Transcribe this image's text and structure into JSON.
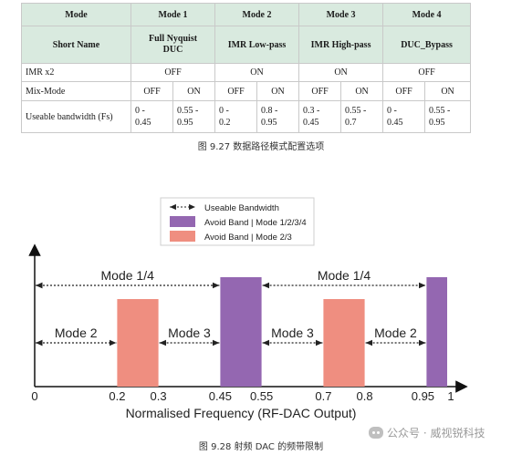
{
  "table": {
    "header_mode": "Mode",
    "modes": [
      "Mode 1",
      "Mode 2",
      "Mode 3",
      "Mode 4"
    ],
    "short_name_label": "Short Name",
    "short_names": [
      "Full Nyquist\nDUC",
      "IMR Low-pass",
      "IMR High-pass",
      "DUC_Bypass"
    ],
    "imr_label": "IMR x2",
    "imr_values": [
      "OFF",
      "ON",
      "ON",
      "OFF"
    ],
    "mix_label": "Mix-Mode",
    "mix_values": [
      "OFF",
      "ON",
      "OFF",
      "ON",
      "OFF",
      "ON",
      "OFF",
      "ON"
    ],
    "bw_label": "Useable bandwidth (Fs)",
    "bw_values": [
      "0 -\n0.45",
      "0.55 -\n0.95",
      "0 -\n0.2",
      "0.8 -\n0.95",
      "0.3 -\n0.45",
      "0.55 -\n0.7",
      "0 -\n0.45",
      "0.55 -\n0.95"
    ]
  },
  "caption_927": "图  9.27  数据路径模式配置选项",
  "caption_928": "图  9.28  射频 DAC 的频带限制",
  "watermark": "公众号 · 威视锐科技",
  "chart_data": {
    "type": "bar",
    "xlabel": "Normalised Frequency (RF-DAC Output)",
    "x_ticks": [
      "0",
      "0.2",
      "0.3",
      "0.45",
      "0.55",
      "0.7",
      "0.8",
      "0.95",
      "1"
    ],
    "x_tick_values": [
      0,
      0.2,
      0.3,
      0.45,
      0.55,
      0.7,
      0.8,
      0.95,
      1
    ],
    "legend": [
      {
        "label": "Useable Bandwidth",
        "kind": "arrow"
      },
      {
        "label": "Avoid Band | Mode 1/2/3/4",
        "color": "#9467b1"
      },
      {
        "label": "Avoid Band | Mode 2/3",
        "color": "#ef8e80"
      }
    ],
    "avoid_bands": [
      {
        "x0": 0.2,
        "x1": 0.3,
        "height": 0.8,
        "color": "#ef8e80"
      },
      {
        "x0": 0.45,
        "x1": 0.55,
        "height": 1.0,
        "color": "#9467b1"
      },
      {
        "x0": 0.7,
        "x1": 0.8,
        "height": 0.8,
        "color": "#ef8e80"
      },
      {
        "x0": 0.95,
        "x1": 1.0,
        "height": 1.0,
        "color": "#9467b1"
      }
    ],
    "arrows": [
      {
        "x0": 0,
        "x1": 0.45,
        "level": "high",
        "label": "Mode 1/4"
      },
      {
        "x0": 0.55,
        "x1": 0.95,
        "level": "high",
        "label": "Mode 1/4"
      },
      {
        "x0": 0,
        "x1": 0.2,
        "level": "low",
        "label": "Mode 2"
      },
      {
        "x0": 0.3,
        "x1": 0.45,
        "level": "low",
        "label": "Mode 3"
      },
      {
        "x0": 0.55,
        "x1": 0.7,
        "level": "low",
        "label": "Mode 3"
      },
      {
        "x0": 0.8,
        "x1": 0.95,
        "level": "low",
        "label": "Mode 2"
      }
    ]
  }
}
